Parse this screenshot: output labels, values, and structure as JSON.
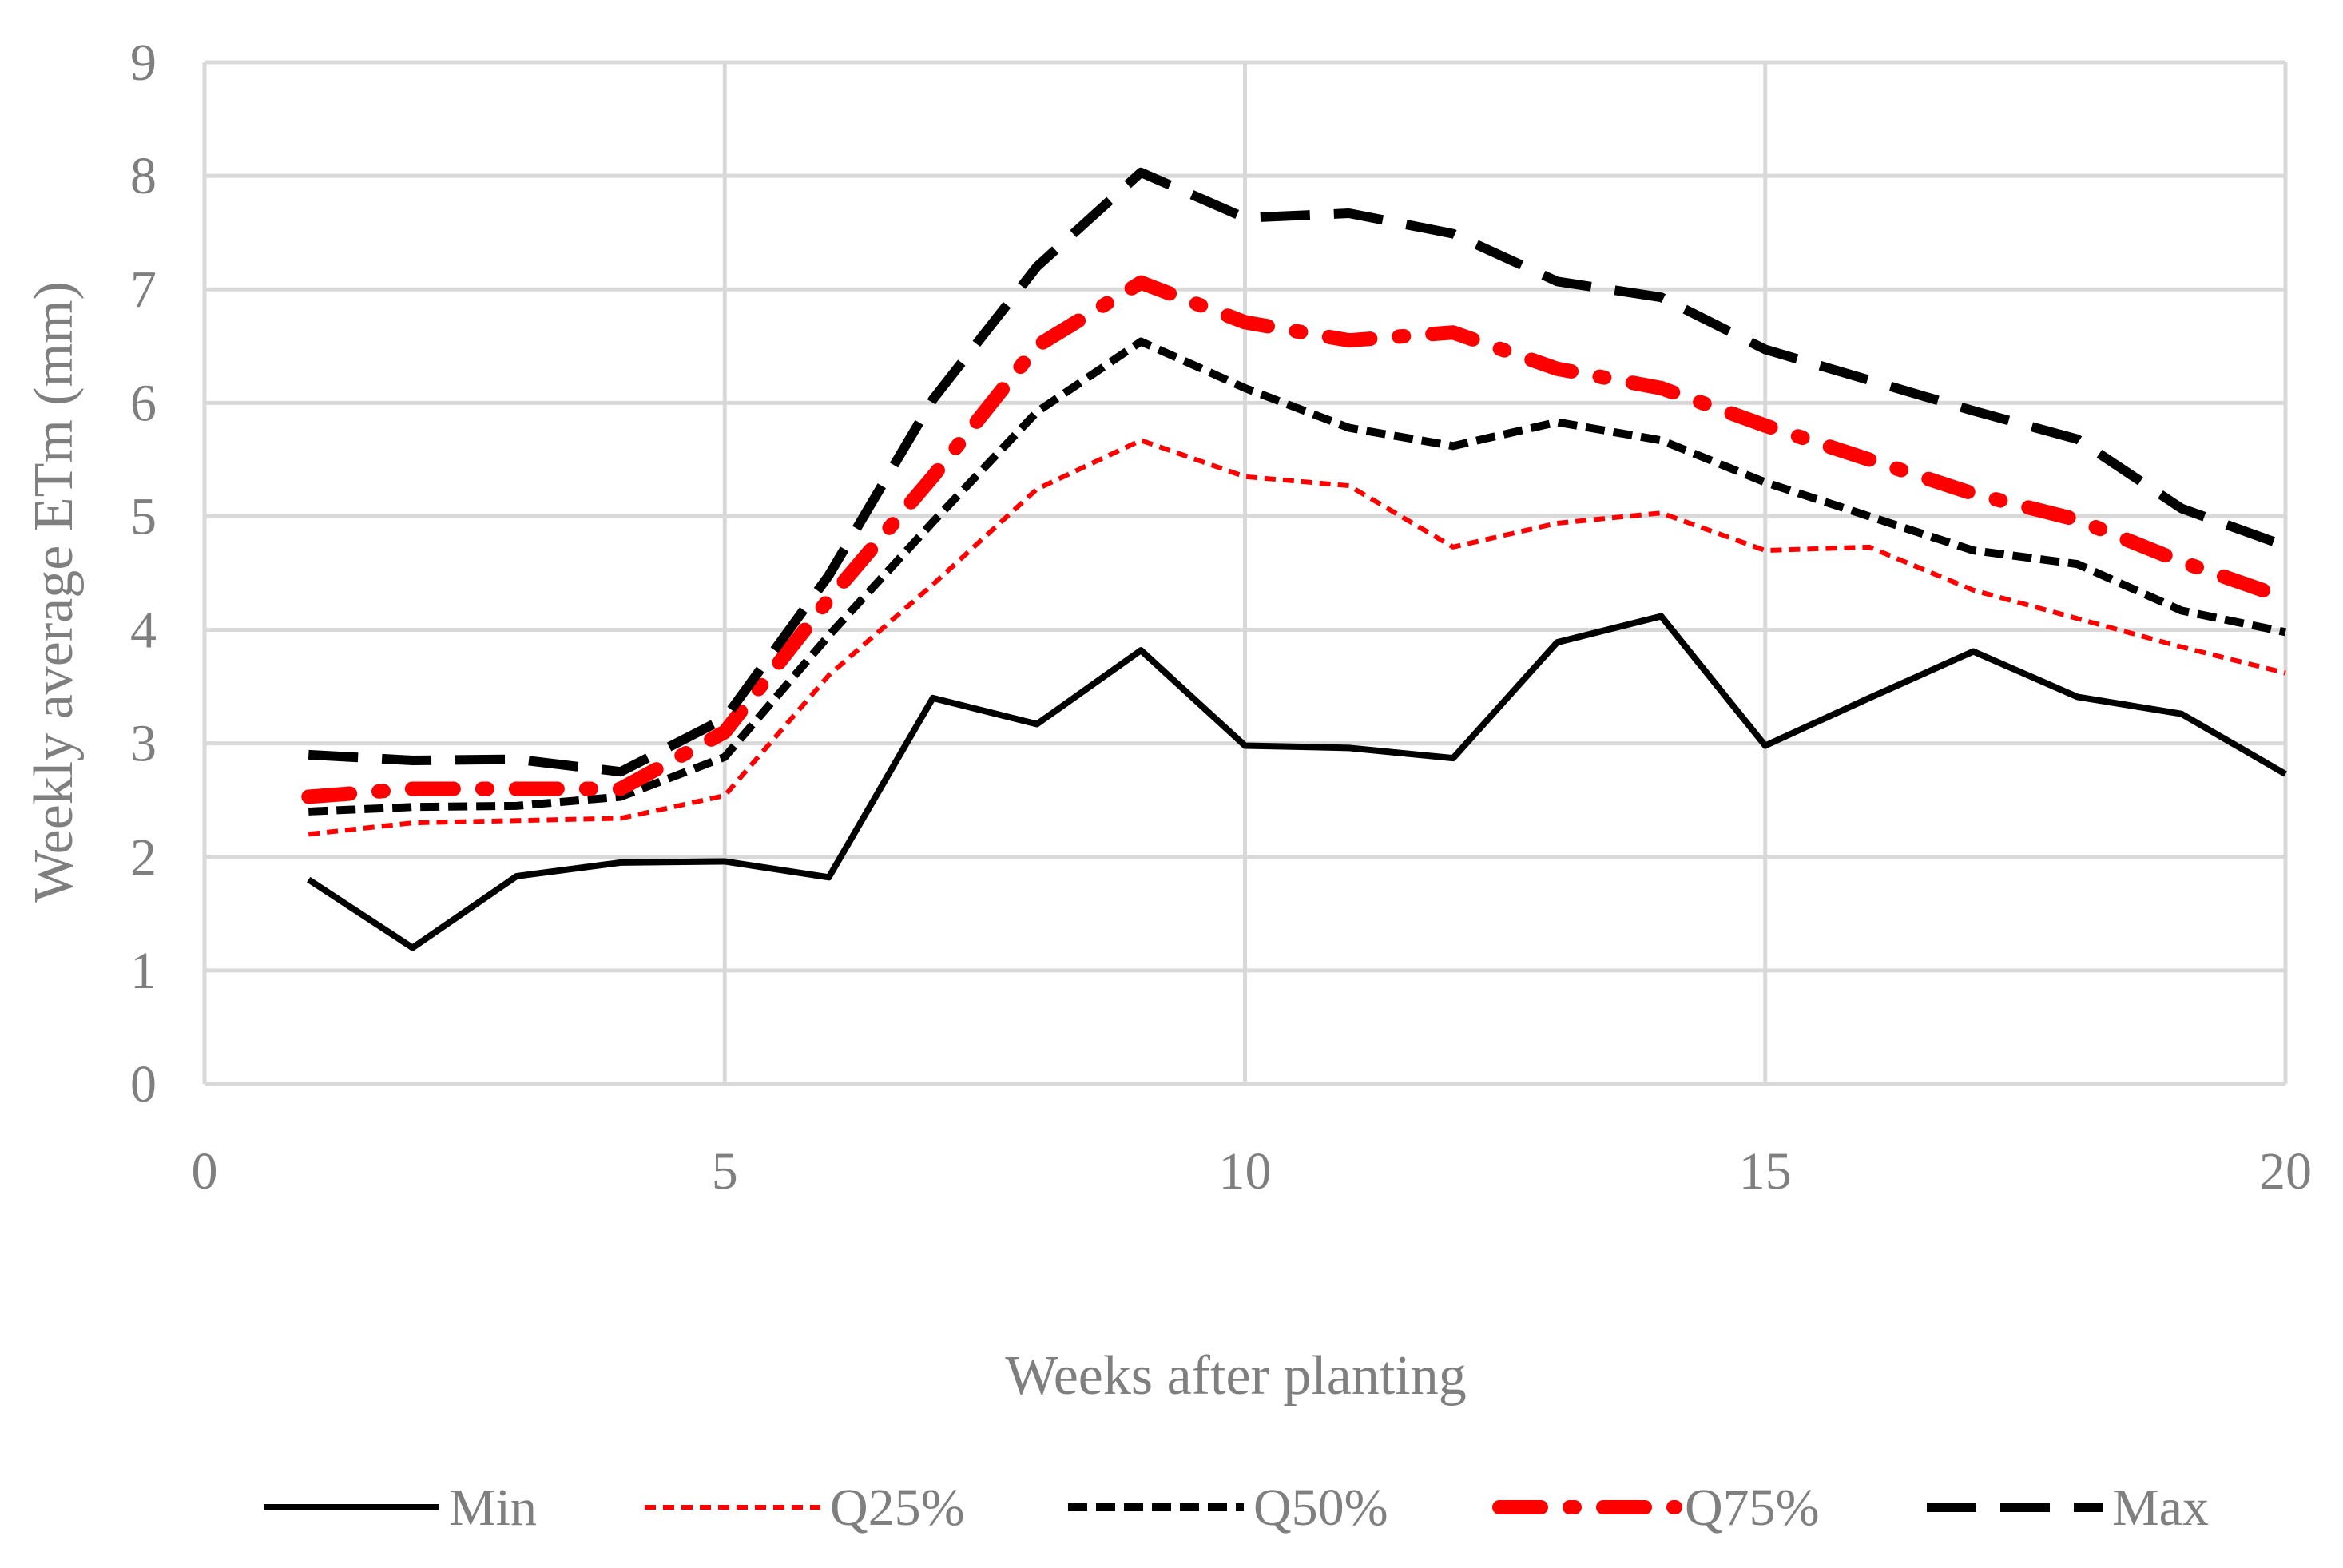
{
  "chart_data": {
    "type": "line",
    "xlabel": "Weeks after planting",
    "ylabel": "Weekly average ETm (mm)",
    "xlim": [
      0,
      20
    ],
    "ylim": [
      0,
      9
    ],
    "x_ticks": [
      0,
      5,
      10,
      15,
      20
    ],
    "y_ticks": [
      0,
      1,
      2,
      3,
      4,
      5,
      6,
      7,
      8,
      9
    ],
    "grid": true,
    "legend_position": "bottom",
    "x": [
      1,
      2,
      3,
      4,
      5,
      6,
      7,
      8,
      9,
      10,
      11,
      12,
      13,
      14,
      15,
      16,
      17,
      18,
      19,
      20
    ],
    "series": [
      {
        "name": "Min",
        "color": "#000000",
        "style": "solid",
        "values": [
          1.8,
          1.2,
          1.83,
          1.95,
          1.96,
          1.82,
          3.4,
          3.17,
          3.82,
          2.98,
          2.96,
          2.87,
          3.89,
          4.12,
          2.98,
          3.4,
          3.81,
          3.41,
          3.26,
          2.73
        ]
      },
      {
        "name": "Q25%",
        "color": "#ff0000",
        "style": "short-dash",
        "values": [
          2.2,
          2.3,
          2.32,
          2.34,
          2.54,
          3.6,
          4.4,
          5.24,
          5.67,
          5.35,
          5.27,
          4.73,
          4.94,
          5.03,
          4.7,
          4.73,
          4.35,
          4.1,
          3.85,
          3.62
        ]
      },
      {
        "name": "Q50%",
        "color": "#000000",
        "style": "dash",
        "values": [
          2.4,
          2.44,
          2.45,
          2.53,
          2.88,
          3.95,
          4.95,
          5.92,
          6.54,
          6.13,
          5.78,
          5.62,
          5.83,
          5.67,
          5.3,
          5,
          4.7,
          4.58,
          4.17,
          3.98
        ]
      },
      {
        "name": "Q75%",
        "color": "#ff0000",
        "style": "dash-dot",
        "values": [
          2.53,
          2.6,
          2.6,
          2.6,
          3.1,
          4.27,
          5.35,
          6.5,
          7.06,
          6.71,
          6.55,
          6.62,
          6.3,
          6.13,
          5.8,
          5.5,
          5.2,
          4.97,
          4.6,
          4.28
        ]
      },
      {
        "name": "Max",
        "color": "#000000",
        "style": "long-dash",
        "values": [
          2.9,
          2.85,
          2.86,
          2.75,
          3.22,
          4.48,
          6.03,
          7.2,
          8.03,
          7.63,
          7.67,
          7.49,
          7.07,
          6.93,
          6.47,
          6.2,
          5.93,
          5.68,
          5.07,
          4.74
        ]
      }
    ]
  }
}
